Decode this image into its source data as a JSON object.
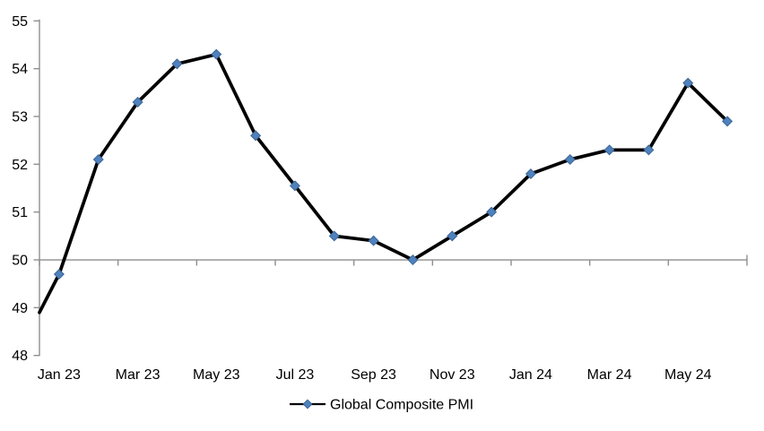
{
  "chart_data": {
    "type": "line",
    "title": "",
    "xlabel": "",
    "ylabel": "",
    "grid": false,
    "legend_position": "bottom",
    "ylim": [
      48,
      55
    ],
    "y_ticks": [
      48,
      49,
      50,
      51,
      52,
      53,
      54,
      55
    ],
    "x_axis_crosses_at": 50,
    "x_tick_labels": [
      "Jan 23",
      "Mar 23",
      "May 23",
      "Jul 23",
      "Sep 23",
      "Nov 23",
      "Jan 24",
      "Mar 24",
      "May 24"
    ],
    "series": [
      {
        "name": "Global Composite PMI",
        "marker": "diamond",
        "categories": [
          "Jan 23",
          "Feb 23",
          "Mar 23",
          "Apr 23",
          "May 23",
          "Jun 23",
          "Jul 23",
          "Aug 23",
          "Sep 23",
          "Oct 23",
          "Nov 23",
          "Dec 23",
          "Jan 24",
          "Feb 24",
          "Mar 24",
          "Apr 24",
          "May 24",
          "Jun 24"
        ],
        "values": [
          49.7,
          52.1,
          53.3,
          54.1,
          54.3,
          52.6,
          51.55,
          50.5,
          50.4,
          50.0,
          50.5,
          51.0,
          51.8,
          52.1,
          52.3,
          52.3,
          53.7,
          52.9
        ],
        "line_start_at_y_axis_value": 48.9
      }
    ]
  },
  "colors": {
    "series_line": "#000000",
    "marker_fill": "#4F81BD",
    "marker_stroke": "#3A6596",
    "axis": "#8E8E8E",
    "text": "#000000",
    "background": "#FFFFFF"
  }
}
